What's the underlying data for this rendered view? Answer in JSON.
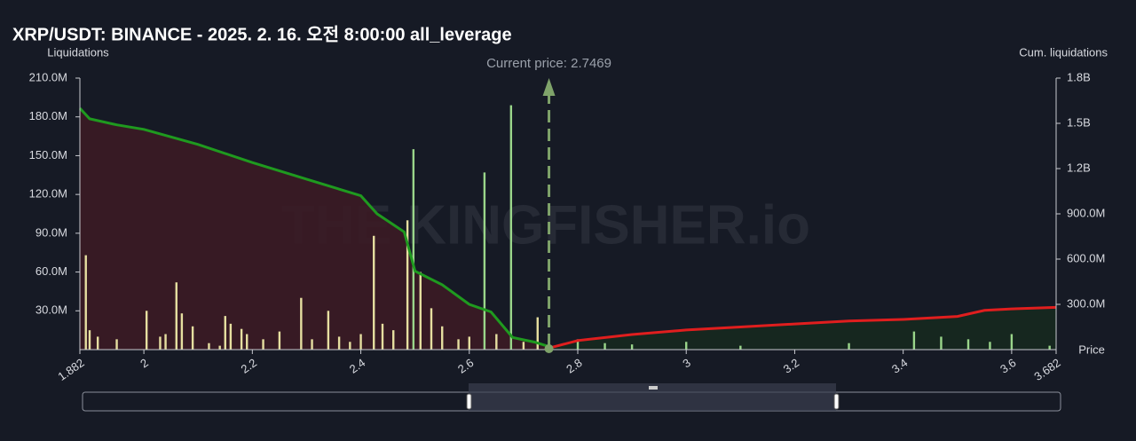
{
  "chart_data": {
    "type": "bar",
    "title": "XRP/USDT: BINANCE - 2025. 2. 16. 오전 8:00:00 all_leverage",
    "y_label": "Liquidations",
    "y2_label": "Cum. liquidations",
    "x_label": "Price",
    "watermark": "THE KINGFISHER.io",
    "annotation": "Current price: 2.7469",
    "current_price": 2.7469,
    "xlim": [
      1.882,
      3.682
    ],
    "xticks": [
      1.882,
      2,
      2.2,
      2.4,
      2.6,
      2.8,
      3,
      3.2,
      3.4,
      3.6,
      3.682
    ],
    "ylim": [
      0,
      210000000
    ],
    "yticks": [
      {
        "value": 30000000,
        "label": "30.0M"
      },
      {
        "value": 60000000,
        "label": "60.0M"
      },
      {
        "value": 90000000,
        "label": "90.0M"
      },
      {
        "value": 120000000,
        "label": "120.0M"
      },
      {
        "value": 150000000,
        "label": "150.0M"
      },
      {
        "value": 180000000,
        "label": "180.0M"
      },
      {
        "value": 210000000,
        "label": "210.0M"
      }
    ],
    "y2lim": [
      0,
      1800000000
    ],
    "y2ticks": [
      {
        "value": 300000000,
        "label": "300.0M"
      },
      {
        "value": 600000000,
        "label": "600.0M"
      },
      {
        "value": 900000000,
        "label": "900.0M"
      },
      {
        "value": 1200000000,
        "label": "1.2B"
      },
      {
        "value": 1500000000,
        "label": "1.5B"
      },
      {
        "value": 1800000000,
        "label": "1.8B"
      }
    ],
    "series": [
      {
        "color": "#e6dfa0",
        "x": [
          1.893,
          1.9,
          1.915,
          1.95,
          2.005,
          2.03,
          2.04,
          2.06,
          2.07,
          2.09,
          2.12,
          2.14,
          2.15,
          2.16,
          2.18,
          2.19,
          2.22,
          2.25,
          2.29,
          2.31,
          2.34,
          2.36,
          2.38,
          2.4,
          2.424,
          2.44,
          2.46,
          2.486,
          2.51,
          2.53,
          2.55,
          2.58,
          2.6,
          2.65,
          2.7,
          2.726
        ],
        "values": [
          73000000,
          15000000,
          10000000,
          8000000,
          30000000,
          10000000,
          12000000,
          52000000,
          28000000,
          18000000,
          5000000,
          3000000,
          26000000,
          20000000,
          16000000,
          12000000,
          8000000,
          14000000,
          40000000,
          8000000,
          30000000,
          10000000,
          6000000,
          12000000,
          88000000,
          20000000,
          15000000,
          100000000,
          60000000,
          32000000,
          18000000,
          8000000,
          10000000,
          12000000,
          6000000,
          25000000
        ]
      },
      {
        "color": "#9ad68a",
        "x": [
          2.497,
          2.628,
          2.677,
          2.8,
          2.85,
          2.9,
          3.0,
          3.1,
          3.3,
          3.42,
          3.47,
          3.52,
          3.56,
          3.6,
          3.67
        ],
        "values": [
          155000000,
          137000000,
          189000000,
          8000000,
          5000000,
          4000000,
          6000000,
          3000000,
          5000000,
          14000000,
          10000000,
          8000000,
          6000000,
          12000000,
          3000000
        ]
      },
      {
        "type": "line",
        "axis": "y2",
        "color": "#1f9a1f",
        "fill": "#3b1b25",
        "x": [
          1.882,
          1.9,
          1.95,
          2.0,
          2.05,
          2.1,
          2.2,
          2.3,
          2.4,
          2.43,
          2.48,
          2.5,
          2.55,
          2.6,
          2.64,
          2.68,
          2.72,
          2.7469
        ],
        "values": [
          1600000000,
          1530000000,
          1490000000,
          1460000000,
          1410000000,
          1360000000,
          1240000000,
          1130000000,
          1020000000,
          900000000,
          780000000,
          520000000,
          430000000,
          300000000,
          250000000,
          80000000,
          50000000,
          20000000
        ]
      },
      {
        "type": "line",
        "axis": "y2",
        "color": "#e01e1e",
        "fill": "#16291f",
        "x": [
          2.7469,
          2.8,
          2.9,
          3.0,
          3.1,
          3.2,
          3.3,
          3.4,
          3.5,
          3.55,
          3.6,
          3.682
        ],
        "values": [
          10000000,
          60000000,
          100000000,
          130000000,
          150000000,
          170000000,
          190000000,
          200000000,
          220000000,
          260000000,
          270000000,
          280000000
        ]
      }
    ]
  }
}
